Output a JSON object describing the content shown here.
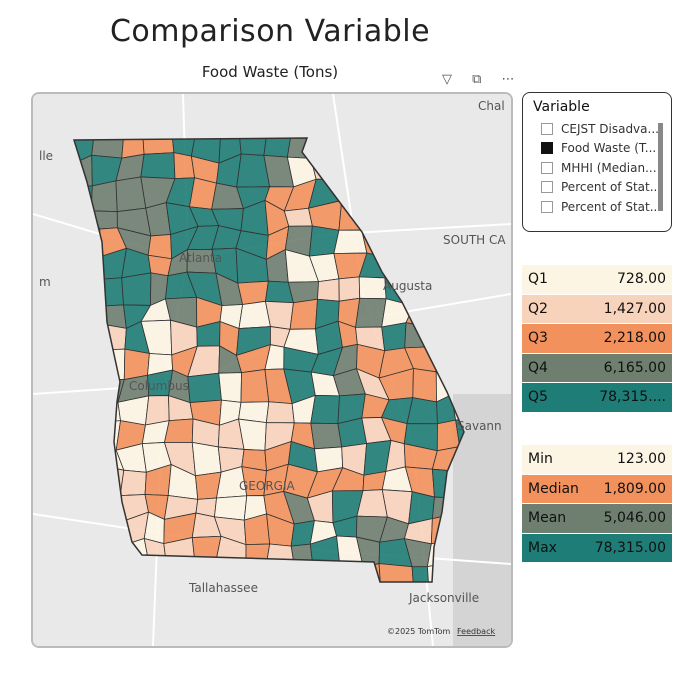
{
  "header": {
    "title": "Comparison Variable",
    "subtitle": "Food Waste (Tons)"
  },
  "map": {
    "labels": [
      "Chal",
      "lle",
      "SOUTH CA",
      "Atlanta",
      "Augusta",
      "m",
      "Columbus",
      "Savann",
      "GEORGIA",
      "Tallahassee",
      "Jacksonville"
    ],
    "attribution": "©2025 TomTom",
    "feedback": "Feedback"
  },
  "slicer": {
    "title": "Variable",
    "options": [
      "CEJST Disadva...",
      "Food Waste (T...",
      "MHHI (Median...",
      "Percent of Stat...",
      "Percent of Stat..."
    ]
  },
  "quantiles": {
    "rows": [
      [
        "Q1",
        "728.00"
      ],
      [
        "Q2",
        "1,427.00"
      ],
      [
        "Q3",
        "2,218.00"
      ],
      [
        "Q4",
        "6,165.00"
      ],
      [
        "Q5",
        "78,315...."
      ]
    ]
  },
  "stats": {
    "rows": [
      [
        "Min",
        "123.00"
      ],
      [
        "Median",
        "1,809.00"
      ],
      [
        "Mean",
        "5,046.00"
      ],
      [
        "Max",
        "78,315.00"
      ]
    ]
  }
}
